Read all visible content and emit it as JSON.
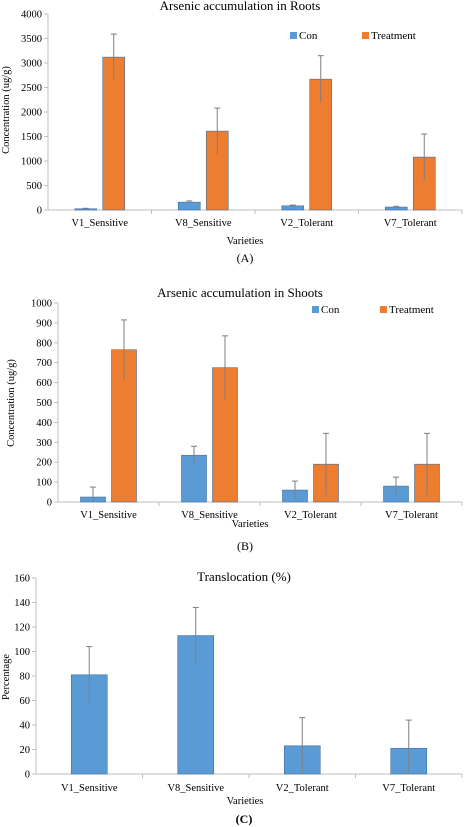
{
  "colors": {
    "con": "#5b9bd5",
    "treatment": "#ed7d31",
    "axis": "#bfbfbf",
    "error": "#7f7f7f"
  },
  "chart_data": [
    {
      "type": "bar",
      "title": "Arsenic accumulation in Roots",
      "xlabel": "Varieties",
      "ylabel": "Concentration (ug/g)",
      "panel_label": "(A)",
      "categories": [
        "V1_Sensitive",
        "V8_Sensitive",
        "V2_Tolerant",
        "V7_Tolerant"
      ],
      "ylim": [
        0,
        4000
      ],
      "yticks": [
        "0",
        "500",
        "1000",
        "1500",
        "2000",
        "2500",
        "3000",
        "3500",
        "4000"
      ],
      "grid": false,
      "legend_position": "top-right",
      "series": [
        {
          "name": "Con",
          "values": [
            25,
            160,
            85,
            60
          ],
          "errors": [
            10,
            25,
            15,
            15
          ]
        },
        {
          "name": "Treatment",
          "values": [
            3120,
            1610,
            2670,
            1080
          ],
          "errors": [
            470,
            470,
            480,
            470
          ]
        }
      ]
    },
    {
      "type": "bar",
      "title": "Arsenic accumulation in Shoots",
      "xlabel": "Varieties",
      "ylabel": "Concentration (ug/g)",
      "panel_label": "(B)",
      "categories": [
        "V1_Sensitive",
        "V8_Sensitive",
        "V2_Tolerant",
        "V7_Tolerant"
      ],
      "ylim": [
        0,
        1000
      ],
      "yticks": [
        "0",
        "100",
        "200",
        "300",
        "400",
        "500",
        "600",
        "700",
        "800",
        "900",
        "1000"
      ],
      "grid": false,
      "legend_position": "top-right",
      "series": [
        {
          "name": "Con",
          "values": [
            25,
            235,
            60,
            80
          ],
          "errors": [
            50,
            45,
            45,
            45
          ]
        },
        {
          "name": "Treatment",
          "values": [
            765,
            675,
            190,
            190
          ],
          "errors": [
            150,
            160,
            155,
            155
          ]
        }
      ]
    },
    {
      "type": "bar",
      "title": "Translocation (%)",
      "xlabel": "Varieties",
      "ylabel": "Percentage",
      "panel_label": "(C)",
      "categories": [
        "V1_Sensitive",
        "V8_Sensitive",
        "V2_Tolerant",
        "V7_Tolerant"
      ],
      "ylim": [
        0,
        160
      ],
      "yticks": [
        "0",
        "20",
        "40",
        "60",
        "80",
        "100",
        "120",
        "140",
        "160"
      ],
      "grid": false,
      "legend_position": "none",
      "series": [
        {
          "values": [
            81,
            113,
            23,
            21
          ],
          "errors": [
            23,
            23,
            23,
            23
          ]
        }
      ]
    }
  ]
}
